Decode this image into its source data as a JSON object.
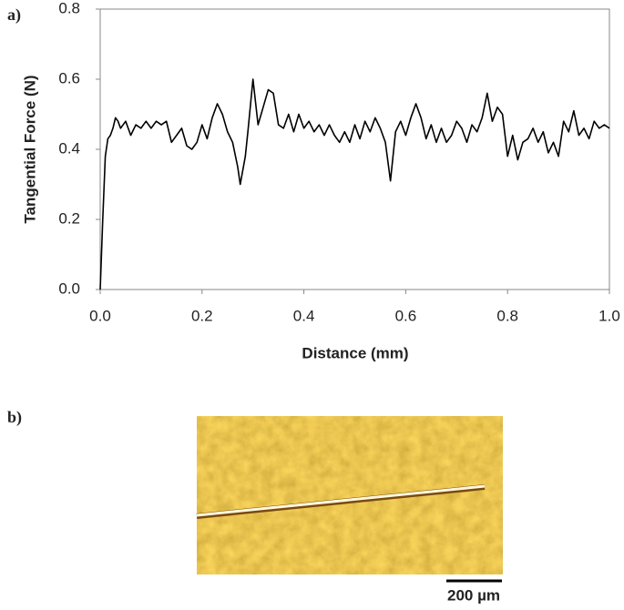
{
  "figure": {
    "panel_labels": [
      "a)",
      "b)"
    ],
    "scale_bar": "200 µm"
  },
  "chart_data": {
    "type": "line",
    "x_label": "Distance (mm)",
    "y_label": "Tangential Force (N)",
    "color": "#000000",
    "x": [
      0,
      0.005,
      0.01,
      0.015,
      0.02,
      0.025,
      0.03,
      0.035,
      0.04,
      0.05,
      0.06,
      0.07,
      0.08,
      0.09,
      0.1,
      0.11,
      0.12,
      0.13,
      0.14,
      0.15,
      0.16,
      0.17,
      0.18,
      0.19,
      0.2,
      0.21,
      0.22,
      0.23,
      0.24,
      0.25,
      0.26,
      0.27,
      0.275,
      0.285,
      0.29,
      0.3,
      0.31,
      0.32,
      0.33,
      0.34,
      0.35,
      0.36,
      0.37,
      0.38,
      0.39,
      0.4,
      0.41,
      0.42,
      0.43,
      0.44,
      0.45,
      0.46,
      0.47,
      0.48,
      0.49,
      0.5,
      0.51,
      0.52,
      0.53,
      0.54,
      0.55,
      0.56,
      0.57,
      0.58,
      0.59,
      0.6,
      0.61,
      0.62,
      0.63,
      0.64,
      0.65,
      0.66,
      0.67,
      0.68,
      0.69,
      0.7,
      0.71,
      0.72,
      0.73,
      0.74,
      0.75,
      0.76,
      0.77,
      0.78,
      0.79,
      0.8,
      0.81,
      0.82,
      0.83,
      0.84,
      0.85,
      0.86,
      0.87,
      0.88,
      0.89,
      0.9,
      0.91,
      0.92,
      0.93,
      0.94,
      0.95,
      0.96,
      0.97,
      0.98,
      0.99,
      1.0
    ],
    "values": [
      0,
      0.2,
      0.38,
      0.43,
      0.44,
      0.46,
      0.49,
      0.48,
      0.46,
      0.48,
      0.44,
      0.47,
      0.46,
      0.48,
      0.46,
      0.48,
      0.47,
      0.48,
      0.42,
      0.44,
      0.46,
      0.41,
      0.4,
      0.42,
      0.47,
      0.43,
      0.49,
      0.53,
      0.5,
      0.45,
      0.42,
      0.35,
      0.3,
      0.38,
      0.45,
      0.6,
      0.47,
      0.52,
      0.57,
      0.56,
      0.47,
      0.46,
      0.5,
      0.45,
      0.5,
      0.46,
      0.48,
      0.45,
      0.47,
      0.44,
      0.47,
      0.44,
      0.42,
      0.45,
      0.42,
      0.47,
      0.43,
      0.48,
      0.45,
      0.49,
      0.46,
      0.42,
      0.31,
      0.45,
      0.48,
      0.44,
      0.49,
      0.53,
      0.49,
      0.43,
      0.47,
      0.42,
      0.46,
      0.42,
      0.44,
      0.48,
      0.46,
      0.42,
      0.47,
      0.45,
      0.49,
      0.56,
      0.48,
      0.52,
      0.5,
      0.38,
      0.44,
      0.37,
      0.42,
      0.43,
      0.46,
      0.42,
      0.45,
      0.39,
      0.42,
      0.38,
      0.48,
      0.45,
      0.51,
      0.44,
      0.46,
      0.43,
      0.48,
      0.46,
      0.47,
      0.46
    ],
    "xlim": [
      0,
      1
    ],
    "xticks": [
      {
        "value": 0,
        "label": "0.0"
      },
      0.2,
      0.4,
      0.6,
      0.8,
      {
        "value": 1,
        "label": "1.0"
      }
    ],
    "ylim": [
      0,
      0.8
    ],
    "yticks": [
      {
        "value": 0,
        "label": "0.0"
      },
      0.2,
      0.4,
      0.6,
      0.8
    ]
  }
}
